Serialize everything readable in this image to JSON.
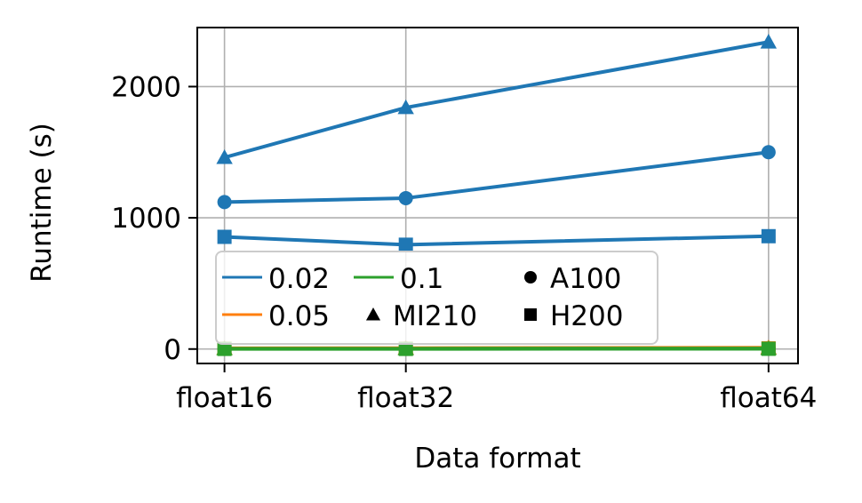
{
  "chart_data": {
    "type": "line",
    "categories": [
      "float16",
      "float32",
      "float64"
    ],
    "x_positions": [
      16,
      32,
      64
    ],
    "xlabel": "Data format",
    "ylabel": "Runtime (s)",
    "ylim": [
      -110,
      2450
    ],
    "yticks": [
      0,
      1000,
      2000
    ],
    "grid": true,
    "legend_placement": "lower-left",
    "series": [
      {
        "threshold": "0.02",
        "gpu": "MI210",
        "marker": "triangle",
        "color": "#1f77b4",
        "values": [
          1460,
          1840,
          2340
        ]
      },
      {
        "threshold": "0.02",
        "gpu": "A100",
        "marker": "circle",
        "color": "#1f77b4",
        "values": [
          1120,
          1150,
          1500
        ]
      },
      {
        "threshold": "0.02",
        "gpu": "H200",
        "marker": "square",
        "color": "#1f77b4",
        "values": [
          855,
          795,
          860
        ]
      },
      {
        "threshold": "0.05",
        "gpu": "MI210",
        "marker": "triangle",
        "color": "#ff7f0e",
        "values": [
          6,
          7,
          10
        ]
      },
      {
        "threshold": "0.05",
        "gpu": "A100",
        "marker": "circle",
        "color": "#ff7f0e",
        "values": [
          4,
          5,
          8
        ]
      },
      {
        "threshold": "0.05",
        "gpu": "H200",
        "marker": "square",
        "color": "#ff7f0e",
        "values": [
          3,
          3,
          5
        ]
      },
      {
        "threshold": "0.1",
        "gpu": "MI210",
        "marker": "triangle",
        "color": "#2ca02c",
        "values": [
          3,
          3,
          4
        ]
      },
      {
        "threshold": "0.1",
        "gpu": "A100",
        "marker": "circle",
        "color": "#2ca02c",
        "values": [
          2,
          2,
          3
        ]
      },
      {
        "threshold": "0.1",
        "gpu": "H200",
        "marker": "square",
        "color": "#2ca02c",
        "values": [
          1,
          1,
          2
        ]
      }
    ],
    "legend": {
      "colors": [
        {
          "label": "0.02",
          "color": "#1f77b4"
        },
        {
          "label": "0.05",
          "color": "#ff7f0e"
        },
        {
          "label": "0.1",
          "color": "#2ca02c"
        }
      ],
      "markers": [
        {
          "label": "MI210",
          "marker": "triangle"
        },
        {
          "label": "A100",
          "marker": "circle"
        },
        {
          "label": "H200",
          "marker": "square"
        }
      ]
    }
  }
}
